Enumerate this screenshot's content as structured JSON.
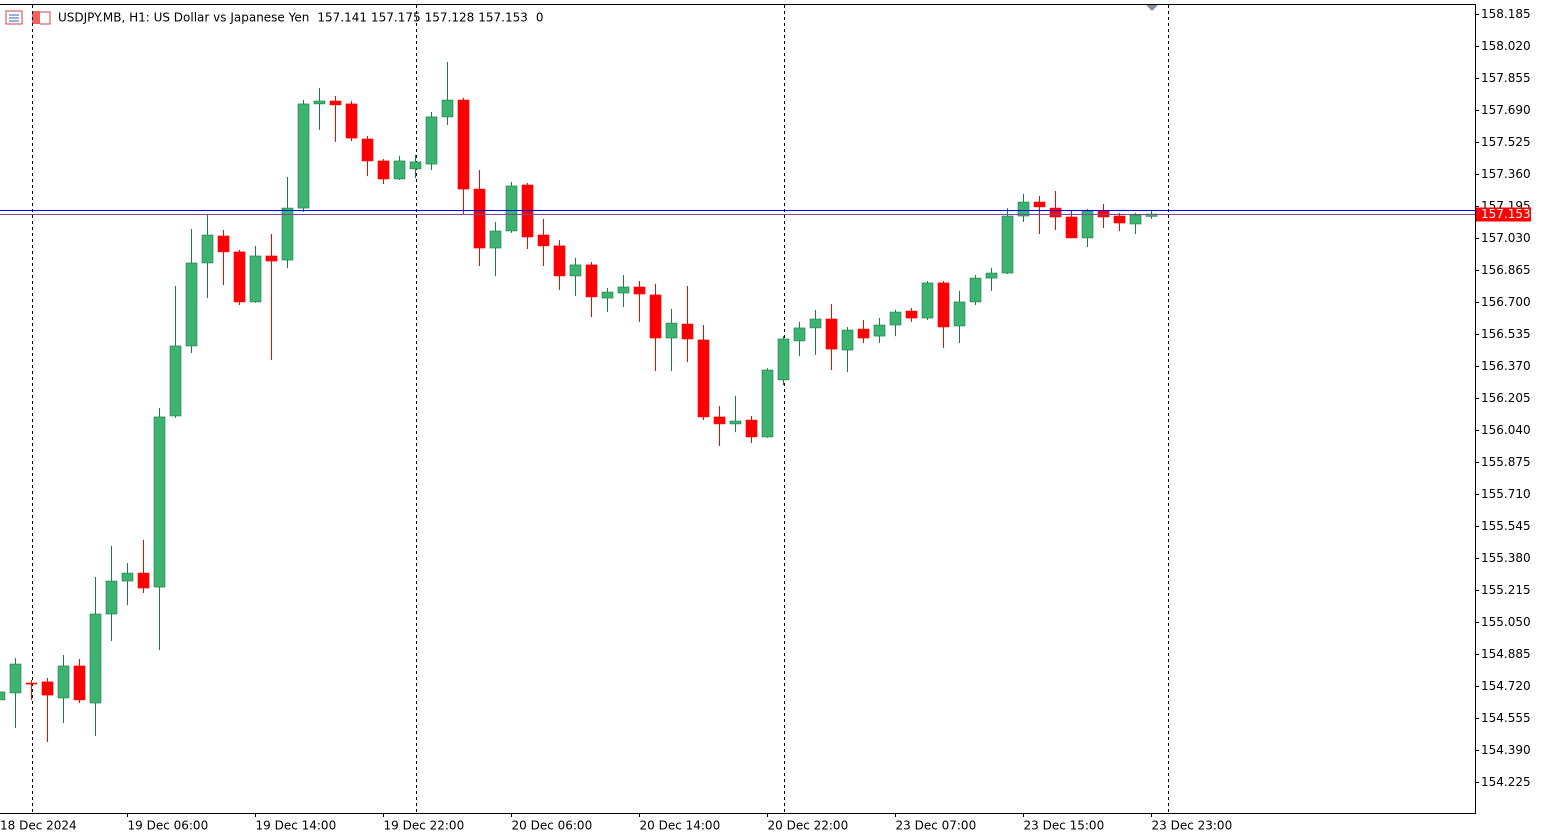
{
  "chart_data": {
    "type": "candlestick",
    "title": "USDJPY.MB, H1:  US Dollar vs Japanese Yen",
    "volume": 0,
    "categories": [
      "18 Dec 2024",
      null,
      null,
      null,
      null,
      null,
      null,
      null,
      "19 Dec 06:00",
      null,
      null,
      null,
      null,
      null,
      null,
      null,
      "19 Dec 14:00",
      null,
      null,
      null,
      null,
      null,
      null,
      null,
      "19 Dec 22:00",
      null,
      null,
      null,
      null,
      null,
      null,
      null,
      "20 Dec 06:00",
      null,
      null,
      null,
      null,
      null,
      null,
      null,
      "20 Dec 14:00",
      null,
      null,
      null,
      null,
      null,
      null,
      null,
      "20 Dec 22:00",
      null,
      null,
      null,
      null,
      null,
      null,
      null,
      "23 Dec 07:00",
      null,
      null,
      null,
      null,
      null,
      null,
      null,
      "23 Dec 15:00",
      null,
      null,
      null,
      null,
      null,
      null,
      null,
      "23 Dec 23:00"
    ],
    "open": [
      154.648,
      154.684,
      154.735,
      154.741,
      154.658,
      154.823,
      154.632,
      155.091,
      155.261,
      155.302,
      155.23,
      156.112,
      156.473,
      156.901,
      157.04,
      156.958,
      156.7,
      156.937,
      156.916,
      157.184,
      157.721,
      157.736,
      157.721,
      157.54,
      157.427,
      157.334,
      157.386,
      157.411,
      157.654,
      157.741,
      157.282,
      156.978,
      157.066,
      157.303,
      157.045,
      156.989,
      156.834,
      156.891,
      156.72,
      156.746,
      156.777,
      156.736,
      156.514,
      156.586,
      156.504,
      156.107,
      156.071,
      156.091,
      156.004,
      156.298,
      156.499,
      156.566,
      156.612,
      156.452,
      156.56,
      156.524,
      156.581,
      156.653,
      156.617,
      156.798,
      156.576,
      156.7,
      156.823,
      156.849,
      157.143,
      157.215,
      157.184,
      157.138,
      157.03,
      157.169,
      157.143,
      157.102,
      157.141
    ],
    "high": [
      154.709,
      154.864,
      154.751,
      154.761,
      154.88,
      154.859,
      155.282,
      155.442,
      155.354,
      155.473,
      156.153,
      156.782,
      157.076,
      157.148,
      157.071,
      156.968,
      156.989,
      157.05,
      157.344,
      157.741,
      157.803,
      157.762,
      157.736,
      157.556,
      157.437,
      157.453,
      157.458,
      157.679,
      157.937,
      157.752,
      157.38,
      157.112,
      157.319,
      157.313,
      157.128,
      157.019,
      156.927,
      156.906,
      156.772,
      156.839,
      156.808,
      156.793,
      156.664,
      156.782,
      156.581,
      156.163,
      156.215,
      156.112,
      156.359,
      156.524,
      156.597,
      156.659,
      156.689,
      156.571,
      156.607,
      156.617,
      156.659,
      156.669,
      156.808,
      156.808,
      156.757,
      156.839,
      156.875,
      157.184,
      157.257,
      157.246,
      157.272,
      157.174,
      157.179,
      157.205,
      157.159,
      157.159,
      157.175
    ],
    "low": [
      154.622,
      154.503,
      154.648,
      154.431,
      154.529,
      154.632,
      154.462,
      154.952,
      155.137,
      155.199,
      154.905,
      156.102,
      156.437,
      156.72,
      156.787,
      156.684,
      156.695,
      156.401,
      156.875,
      157.164,
      157.587,
      157.525,
      157.53,
      157.349,
      157.308,
      157.329,
      157.339,
      157.38,
      157.612,
      157.154,
      156.885,
      156.834,
      157.056,
      156.973,
      156.885,
      156.762,
      156.731,
      156.622,
      156.648,
      156.674,
      156.597,
      156.344,
      156.344,
      156.39,
      156.091,
      155.957,
      156.029,
      155.973,
      155.999,
      156.272,
      156.421,
      156.427,
      156.349,
      156.339,
      156.488,
      156.488,
      156.524,
      156.597,
      156.607,
      156.463,
      156.488,
      156.684,
      156.757,
      156.844,
      157.112,
      157.05,
      157.071,
      157.03,
      156.983,
      157.081,
      157.066,
      157.05,
      157.128
    ],
    "close": [
      154.689,
      154.833,
      154.73,
      154.673,
      154.823,
      154.648,
      155.091,
      155.261,
      155.302,
      155.225,
      156.107,
      156.473,
      156.901,
      157.045,
      156.958,
      156.7,
      156.937,
      156.911,
      157.184,
      157.721,
      157.736,
      157.716,
      157.545,
      157.427,
      157.334,
      157.427,
      157.422,
      157.654,
      157.741,
      157.282,
      156.978,
      157.066,
      157.298,
      157.035,
      156.989,
      156.834,
      156.891,
      156.726,
      156.751,
      156.777,
      156.741,
      156.514,
      156.591,
      156.509,
      156.107,
      156.071,
      156.086,
      156.004,
      156.349,
      156.509,
      156.566,
      156.612,
      156.457,
      156.555,
      156.514,
      156.581,
      156.648,
      156.617,
      156.798,
      156.571,
      156.7,
      156.823,
      156.849,
      157.143,
      157.215,
      157.19,
      157.138,
      157.03,
      157.169,
      157.138,
      157.107,
      157.148,
      157.153
    ],
    "up_color": "#3cb371",
    "down_color": "#ff0000",
    "bid": 157.153,
    "bid_color": "#ff0000",
    "ask": 157.172,
    "ask_color": "#0000ff",
    "day_starts": [
      2,
      26,
      49,
      73
    ],
    "ylim": [
      154.065,
      158.231
    ],
    "yticks": [
      158.185,
      {
        "value": 158.02,
        "label": "158.020"
      },
      157.855,
      {
        "value": 157.69,
        "label": "157.690"
      },
      157.525,
      {
        "value": 157.36,
        "label": "157.360"
      },
      157.195,
      {
        "value": 157.03,
        "label": "157.030"
      },
      156.865,
      {
        "value": 156.7,
        "label": "156.700"
      },
      156.535,
      {
        "value": 156.37,
        "label": "156.370"
      },
      156.205,
      {
        "value": 156.04,
        "label": "156.040"
      },
      155.875,
      {
        "value": 155.71,
        "label": "155.710"
      },
      155.545,
      {
        "value": 155.38,
        "label": "155.380"
      },
      155.215,
      {
        "value": 155.05,
        "label": "155.050"
      },
      154.885,
      {
        "value": 154.72,
        "label": "154.720"
      },
      154.555,
      {
        "value": 154.39,
        "label": "154.390"
      },
      154.225
    ]
  }
}
